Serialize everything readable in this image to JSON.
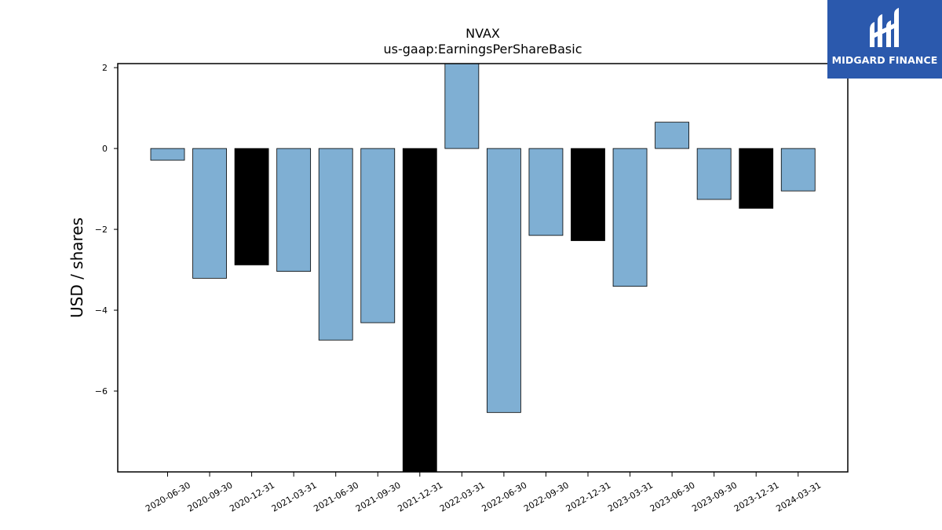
{
  "chart_data": {
    "type": "bar",
    "title": "NVAX",
    "subtitle": "us-gaap:EarningsPerShareBasic",
    "ylabel": "USD / shares",
    "xlabel": "",
    "ylim": [
      -8.0,
      2.1
    ],
    "yticks": [
      2,
      0,
      -2,
      -4,
      -6
    ],
    "ytick_labels": [
      "2",
      "0",
      "−2",
      "−4",
      "−6"
    ],
    "categories": [
      "2020-06-30",
      "2020-09-30",
      "2020-12-31",
      "2021-03-31",
      "2021-06-30",
      "2021-09-30",
      "2021-12-31",
      "2022-03-31",
      "2022-06-30",
      "2022-09-30",
      "2022-12-31",
      "2023-03-31",
      "2023-06-30",
      "2023-09-30",
      "2023-12-31",
      "2024-03-31"
    ],
    "values": [
      -0.29,
      -3.21,
      -2.88,
      -3.04,
      -4.74,
      -4.31,
      -8.0,
      2.1,
      -6.53,
      -2.15,
      -2.28,
      -3.41,
      0.65,
      -1.26,
      -1.48,
      -1.05
    ],
    "colors": [
      "#7fafd3",
      "#7fafd3",
      "#000000",
      "#7fafd3",
      "#7fafd3",
      "#7fafd3",
      "#000000",
      "#7fafd3",
      "#7fafd3",
      "#7fafd3",
      "#000000",
      "#7fafd3",
      "#7fafd3",
      "#7fafd3",
      "#000000",
      "#7fafd3"
    ]
  },
  "logo": {
    "name": "MIDGARD FINANCE",
    "bg_color": "#2b59ad",
    "icon": "midgard-logo-icon"
  }
}
